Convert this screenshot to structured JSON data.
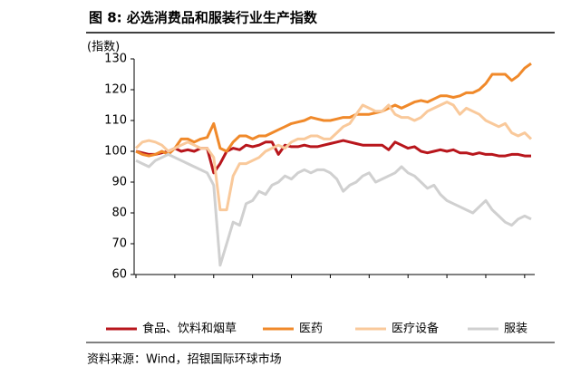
{
  "chart_data": {
    "type": "line",
    "title": "图 8: 必选消费品和服装行业生产指数",
    "y_label": "(指数)",
    "source": "资料来源：Wind，招银国际环球市场",
    "ylim": [
      60,
      130
    ],
    "yticks": [
      60,
      70,
      80,
      90,
      100,
      110,
      120,
      130
    ],
    "series": [
      {
        "name": "食品、饮料和烟草",
        "color": "#b8161c",
        "values": [
          100,
          99.5,
          99,
          99,
          99.5,
          100,
          101,
          100,
          100.5,
          100,
          101,
          101,
          93,
          96,
          100,
          101,
          100.5,
          102,
          101.5,
          102,
          103,
          103,
          99,
          102,
          101.5,
          101.5,
          102,
          101.5,
          101.5,
          102,
          102.5,
          103,
          103.5,
          103,
          102.5,
          102,
          102,
          102,
          102,
          100.5,
          103,
          102,
          101,
          101.5,
          100,
          99.5,
          100,
          100.5,
          100,
          100.5,
          99.5,
          99.5,
          99,
          99.5,
          99,
          99,
          98.5,
          98.5,
          99,
          99,
          98.5,
          98.5
        ]
      },
      {
        "name": "医药",
        "color": "#f0892a",
        "values": [
          100,
          99,
          98.5,
          99,
          100,
          99,
          101,
          104,
          104,
          103,
          104,
          104.5,
          109,
          101,
          100,
          103,
          105,
          105,
          104,
          105,
          105,
          106,
          107,
          108,
          109,
          109.5,
          110,
          111,
          110.5,
          110,
          110,
          110.5,
          111,
          111,
          112,
          112,
          112,
          112.5,
          113,
          114,
          115,
          114,
          115,
          116,
          116.5,
          116,
          117,
          118,
          118,
          117.5,
          118,
          119,
          119,
          120,
          122,
          125,
          125,
          125,
          123,
          124.5,
          127,
          128.5
        ]
      },
      {
        "name": "医疗设备",
        "color": "#f9c99b",
        "values": [
          101,
          103,
          103.5,
          103,
          102,
          100,
          101,
          102,
          103,
          102,
          101,
          101,
          98,
          81,
          81,
          92,
          96,
          96,
          97,
          98,
          100,
          101,
          102,
          101,
          103,
          104,
          104,
          105,
          105,
          104,
          104,
          106,
          108,
          109,
          112,
          115,
          114,
          113,
          113,
          115,
          112,
          111,
          111,
          110,
          111,
          113,
          114,
          115,
          116,
          115,
          112,
          114,
          113,
          112,
          110,
          109,
          108,
          109,
          106,
          105,
          106,
          104
        ]
      },
      {
        "name": "服装",
        "color": "#d0d0d0",
        "values": [
          97,
          96,
          95,
          97,
          98,
          99,
          98,
          97,
          96,
          95,
          94,
          93,
          89,
          63,
          70,
          77,
          76,
          83,
          84,
          87,
          86,
          89,
          90,
          92,
          91,
          93,
          94,
          93,
          94,
          94,
          93,
          91,
          87,
          89,
          90,
          92,
          93,
          90,
          91,
          92,
          93,
          95,
          93,
          92,
          90,
          88,
          89,
          86,
          84,
          83,
          82,
          81,
          80,
          82,
          84,
          81,
          79,
          77,
          76,
          78,
          79,
          78
        ]
      }
    ]
  }
}
